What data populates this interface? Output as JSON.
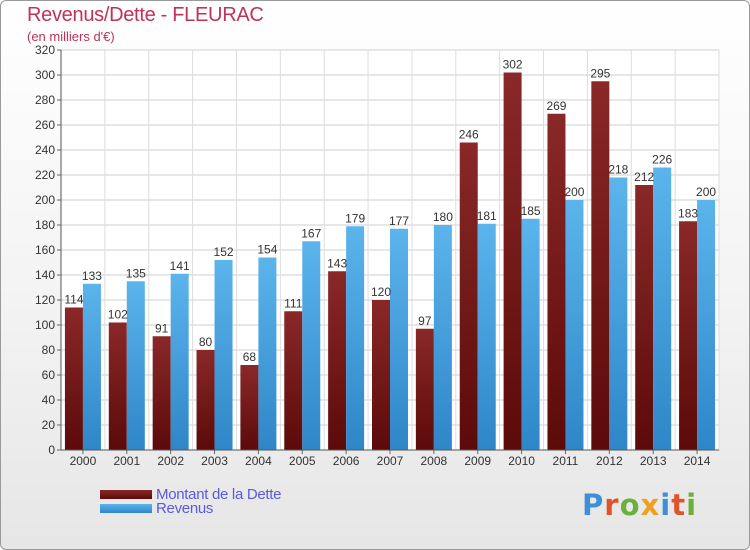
{
  "title": "Revenus/Dette - FLEURAC",
  "subtitle": "(en milliers d'€)",
  "legend": {
    "debt_label": "Montant de la Dette",
    "revenue_label": "Revenus"
  },
  "logo_text": "Proxiti",
  "colors": {
    "debt": "#7a1c1c",
    "revenue": "#4aa6e4",
    "title": "#c0325a",
    "legend_text": "#5a5ae0"
  },
  "chart_data": {
    "type": "bar",
    "title": "Revenus/Dette - FLEURAC",
    "subtitle": "(en milliers d'€)",
    "categories": [
      "2000",
      "2001",
      "2002",
      "2003",
      "2004",
      "2005",
      "2006",
      "2007",
      "2008",
      "2009",
      "2010",
      "2011",
      "2012",
      "2013",
      "2014"
    ],
    "series": [
      {
        "name": "Montant de la Dette",
        "values": [
          114,
          102,
          91,
          80,
          68,
          111,
          143,
          120,
          97,
          246,
          302,
          269,
          295,
          212,
          183
        ]
      },
      {
        "name": "Revenus",
        "values": [
          133,
          135,
          141,
          152,
          154,
          167,
          179,
          177,
          180,
          181,
          185,
          200,
          218,
          226,
          200
        ]
      }
    ],
    "ylim": [
      0,
      320
    ],
    "yticks": [
      0,
      20,
      40,
      60,
      80,
      100,
      120,
      140,
      160,
      180,
      200,
      220,
      240,
      260,
      280,
      300,
      320
    ],
    "grid": true,
    "legend_position": "bottom-left"
  }
}
